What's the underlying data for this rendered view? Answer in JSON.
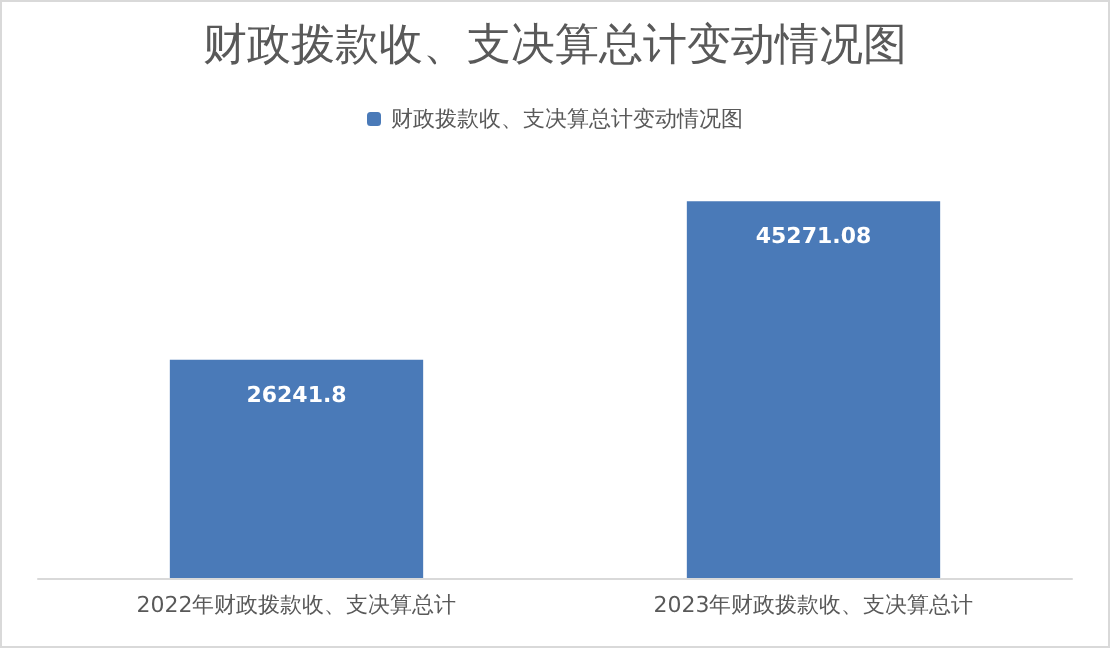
{
  "chart_data": {
    "type": "bar",
    "title": "财政拨款收、支决算总计变动情况图",
    "categories": [
      "2022年财政拨款收、支决算总计",
      "2023年财政拨款收、支决算总计"
    ],
    "series": [
      {
        "name": "财政拨款收、支决算总计变动情况图",
        "color": "#4a7ab8",
        "values": [
          26241.8,
          45271.08
        ]
      }
    ],
    "data_labels": true,
    "legend": "top",
    "tick_labels": "x",
    "grid": false
  }
}
